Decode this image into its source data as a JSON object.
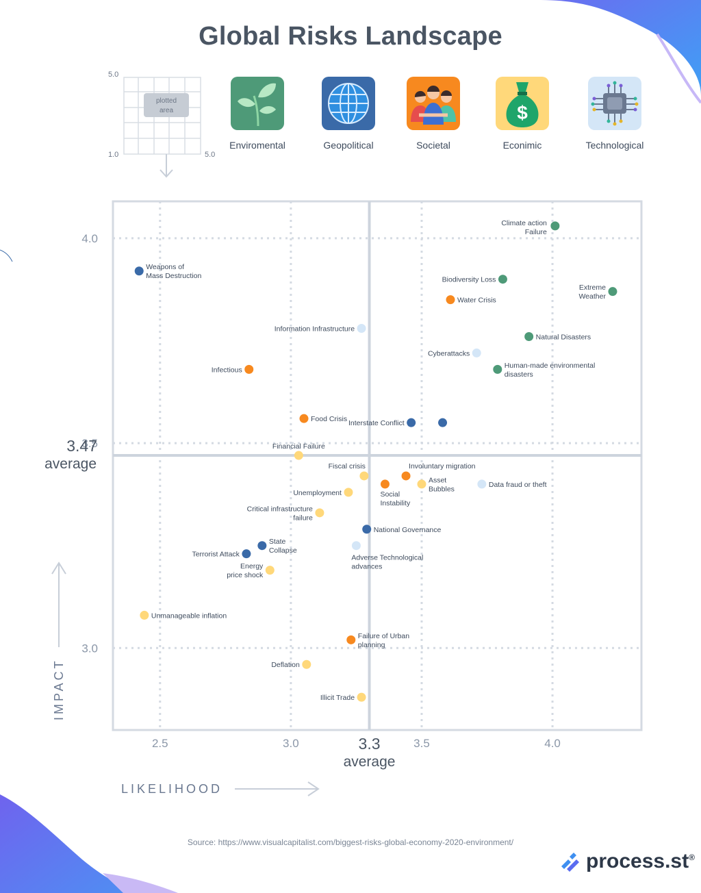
{
  "title": "Global Risks Landscape",
  "legend": {
    "mini_grid": {
      "y_top": "5.0",
      "y_bottom": "1.0",
      "x_right": "5.0",
      "plotted_area_line1": "plotted",
      "plotted_area_line2": "area"
    },
    "categories": [
      {
        "label": "Enviromental",
        "icon": "plant-icon",
        "color": "#4e9a78"
      },
      {
        "label": "Geopolitical",
        "icon": "globe-icon",
        "color": "#3a6aa8"
      },
      {
        "label": "Societal",
        "icon": "people-icon",
        "color": "#f7891f"
      },
      {
        "label": "Econimic",
        "icon": "money-bag-icon",
        "color": "#ffd87a"
      },
      {
        "label": "Technological",
        "icon": "circuit-chip-icon",
        "color": "#d4e6f7"
      }
    ]
  },
  "chart_data": {
    "type": "scatter",
    "title": "Global Risks Landscape",
    "xlabel": "LIKELIHOOD",
    "ylabel": "IMPACT",
    "xlim": [
      2.32,
      4.34
    ],
    "ylim": [
      2.8,
      4.09
    ],
    "x_ticks": [
      "2.5",
      "3.0",
      "3.5",
      "4.0"
    ],
    "x_tick_values": [
      2.5,
      3.0,
      3.5,
      4.0
    ],
    "y_ticks": [
      "4.0",
      "3.5",
      "3.0"
    ],
    "y_tick_values": [
      4.0,
      3.5,
      3.0
    ],
    "average": {
      "x": 3.3,
      "x_text": "3.3",
      "y": 3.47,
      "y_text": "3.47",
      "label": "average"
    },
    "grid": true,
    "colors": {
      "Enviromental": "#4e9a78",
      "Geopolitical": "#3a6aa8",
      "Societal": "#f7891f",
      "Econimic": "#ffd87a",
      "Technological": "#d4e6f7"
    },
    "points": [
      {
        "lines": [
          "Climate action",
          "Failure"
        ],
        "x": 4.01,
        "y": 4.03,
        "cat": "Enviromental",
        "pos": "left-above"
      },
      {
        "lines": [
          "Weapons of",
          "Mass Destruction"
        ],
        "x": 2.42,
        "y": 3.92,
        "cat": "Geopolitical",
        "pos": "right"
      },
      {
        "lines": [
          "Biodiversity Loss"
        ],
        "x": 3.81,
        "y": 3.9,
        "cat": "Enviromental",
        "pos": "left"
      },
      {
        "lines": [
          "Extreme",
          "Weather"
        ],
        "x": 4.23,
        "y": 3.87,
        "cat": "Enviromental",
        "pos": "left"
      },
      {
        "lines": [
          "Water Crisis"
        ],
        "x": 3.61,
        "y": 3.85,
        "cat": "Societal",
        "pos": "right"
      },
      {
        "lines": [
          "Information Infrastructure"
        ],
        "x": 3.27,
        "y": 3.78,
        "cat": "Technological",
        "pos": "left"
      },
      {
        "lines": [
          "Natural Disasters"
        ],
        "x": 3.91,
        "y": 3.76,
        "cat": "Enviromental",
        "pos": "right"
      },
      {
        "lines": [
          "Cyberattacks"
        ],
        "x": 3.71,
        "y": 3.72,
        "cat": "Technological",
        "pos": "left"
      },
      {
        "lines": [
          "Human-made environmental",
          "disasters"
        ],
        "x": 3.79,
        "y": 3.68,
        "cat": "Enviromental",
        "pos": "right"
      },
      {
        "lines": [
          "Infectious"
        ],
        "x": 2.84,
        "y": 3.68,
        "cat": "Societal",
        "pos": "left"
      },
      {
        "lines": [
          "Food Crisis"
        ],
        "x": 3.05,
        "y": 3.56,
        "cat": "Societal",
        "pos": "right"
      },
      {
        "lines": [
          "Interstate Conflict"
        ],
        "x": 3.46,
        "y": 3.55,
        "cat": "Geopolitical",
        "pos": "left"
      },
      {
        "lines": [],
        "x": 3.58,
        "y": 3.55,
        "cat": "Geopolitical",
        "pos": "none"
      },
      {
        "lines": [
          "Financial Failure"
        ],
        "x": 3.03,
        "y": 3.47,
        "cat": "Econimic",
        "pos": "above"
      },
      {
        "lines": [
          "Fiscal crisis"
        ],
        "x": 3.28,
        "y": 3.42,
        "cat": "Econimic",
        "pos": "above-left"
      },
      {
        "lines": [
          "Involuntary migration"
        ],
        "x": 3.44,
        "y": 3.42,
        "cat": "Societal",
        "pos": "above-right"
      },
      {
        "lines": [
          "Social",
          "Instability"
        ],
        "x": 3.36,
        "y": 3.4,
        "cat": "Societal",
        "pos": "below"
      },
      {
        "lines": [
          "Asset",
          "Bubbles"
        ],
        "x": 3.5,
        "y": 3.4,
        "cat": "Econimic",
        "pos": "right"
      },
      {
        "lines": [
          "Data fraud or theft"
        ],
        "x": 3.73,
        "y": 3.4,
        "cat": "Technological",
        "pos": "right"
      },
      {
        "lines": [
          "Unemployment"
        ],
        "x": 3.22,
        "y": 3.38,
        "cat": "Econimic",
        "pos": "left"
      },
      {
        "lines": [
          "Critical infrastructure",
          "failure"
        ],
        "x": 3.11,
        "y": 3.33,
        "cat": "Econimic",
        "pos": "left"
      },
      {
        "lines": [
          "National Governance"
        ],
        "x": 3.29,
        "y": 3.29,
        "cat": "Geopolitical",
        "pos": "right"
      },
      {
        "lines": [
          "State",
          "Collapse"
        ],
        "x": 2.89,
        "y": 3.25,
        "cat": "Geopolitical",
        "pos": "right"
      },
      {
        "lines": [
          "Adverse Technological",
          "advances"
        ],
        "x": 3.25,
        "y": 3.25,
        "cat": "Technological",
        "pos": "below-right"
      },
      {
        "lines": [
          "Terrorist Attack"
        ],
        "x": 2.83,
        "y": 3.23,
        "cat": "Geopolitical",
        "pos": "left"
      },
      {
        "lines": [
          "Energy",
          "price shock"
        ],
        "x": 2.92,
        "y": 3.19,
        "cat": "Econimic",
        "pos": "left"
      },
      {
        "lines": [
          "Unmanageable inflation"
        ],
        "x": 2.44,
        "y": 3.08,
        "cat": "Econimic",
        "pos": "right"
      },
      {
        "lines": [
          "Failure of Urban",
          "planning"
        ],
        "x": 3.23,
        "y": 3.02,
        "cat": "Societal",
        "pos": "right"
      },
      {
        "lines": [
          "Deflation"
        ],
        "x": 3.06,
        "y": 2.96,
        "cat": "Econimic",
        "pos": "left"
      },
      {
        "lines": [
          "Illicit Trade"
        ],
        "x": 3.27,
        "y": 2.88,
        "cat": "Econimic",
        "pos": "left"
      }
    ]
  },
  "source": "Source: https://www.visualcapitalist.com/biggest-risks-global-economy-2020-environment/",
  "brand": {
    "name": "process",
    "suffix": ".st",
    "mark": "®"
  }
}
